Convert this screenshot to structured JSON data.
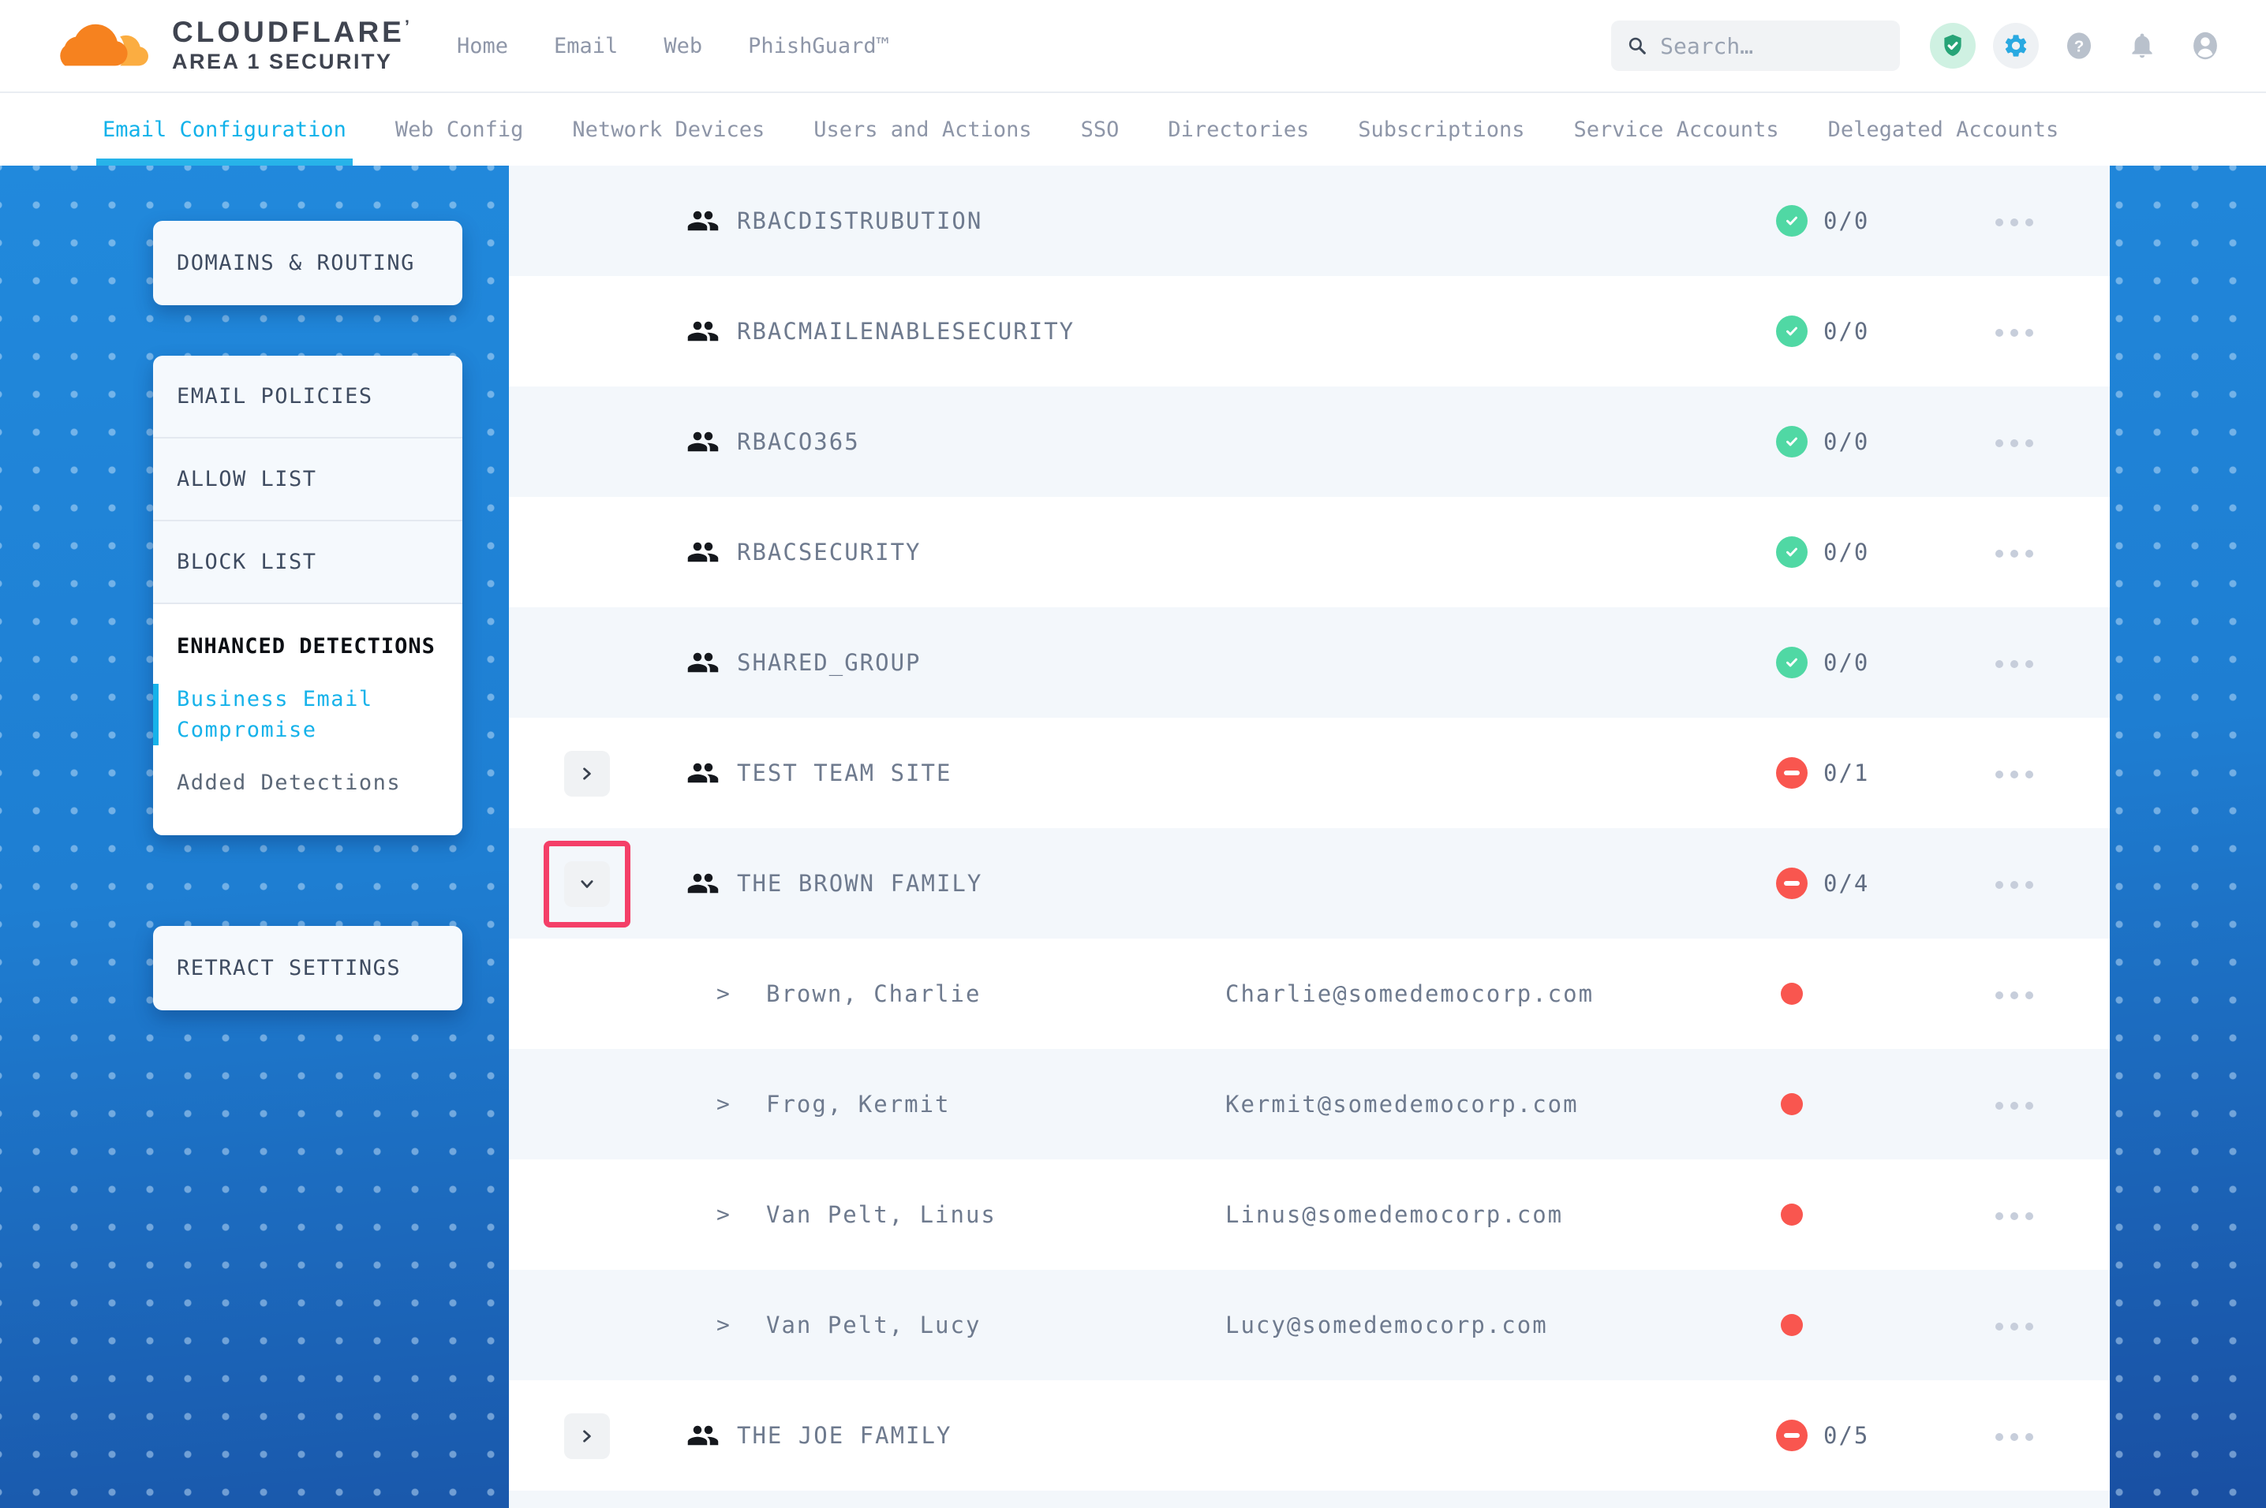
{
  "brand": {
    "name": "CLOUDFLARE",
    "mark": "’",
    "subtitle": "AREA 1 SECURITY"
  },
  "top_nav": {
    "items": [
      "Home",
      "Email",
      "Web",
      "PhishGuard™"
    ]
  },
  "search": {
    "placeholder": "Search…"
  },
  "header_icons": [
    "security-shield-icon",
    "settings-gear-icon",
    "help-icon",
    "notifications-bell-icon",
    "account-icon"
  ],
  "tabs": {
    "items": [
      {
        "label": "Email Configuration",
        "active": true
      },
      {
        "label": "Web Config",
        "active": false
      },
      {
        "label": "Network Devices",
        "active": false
      },
      {
        "label": "Users and Actions",
        "active": false
      },
      {
        "label": "SSO",
        "active": false
      },
      {
        "label": "Directories",
        "active": false
      },
      {
        "label": "Subscriptions",
        "active": false
      },
      {
        "label": "Service Accounts",
        "active": false
      },
      {
        "label": "Delegated Accounts",
        "active": false
      }
    ]
  },
  "sidebar": {
    "cards": [
      {
        "items": [
          {
            "label": "DOMAINS & ROUTING"
          }
        ]
      },
      {
        "items": [
          {
            "label": "EMAIL POLICIES"
          },
          {
            "label": "ALLOW LIST"
          },
          {
            "label": "BLOCK LIST"
          },
          {
            "label": "ENHANCED DETECTIONS",
            "children": [
              {
                "label": "Business Email Compromise",
                "active": true
              },
              {
                "label": "Added Detections",
                "active": false
              }
            ]
          }
        ]
      },
      {
        "items": [
          {
            "label": "RETRACT SETTINGS"
          }
        ]
      }
    ]
  },
  "glyphs": {
    "member_caret": ">"
  },
  "list": {
    "rows": [
      {
        "kind": "group",
        "name": "RBACDISTRUBUTION",
        "status": "ok",
        "count": "0/0",
        "expandable": false,
        "expanded": false,
        "highlighted": false
      },
      {
        "kind": "group",
        "name": "RBACMAILENABLESECURITY",
        "status": "ok",
        "count": "0/0",
        "expandable": false,
        "expanded": false,
        "highlighted": false
      },
      {
        "kind": "group",
        "name": "RBACO365",
        "status": "ok",
        "count": "0/0",
        "expandable": false,
        "expanded": false,
        "highlighted": false
      },
      {
        "kind": "group",
        "name": "RBACSECURITY",
        "status": "ok",
        "count": "0/0",
        "expandable": false,
        "expanded": false,
        "highlighted": false
      },
      {
        "kind": "group",
        "name": "SHARED_GROUP",
        "status": "ok",
        "count": "0/0",
        "expandable": false,
        "expanded": false,
        "highlighted": false
      },
      {
        "kind": "group",
        "name": "TEST TEAM SITE",
        "status": "blocked",
        "count": "0/1",
        "expandable": true,
        "expanded": false,
        "highlighted": false
      },
      {
        "kind": "group",
        "name": "THE BROWN FAMILY",
        "status": "blocked",
        "count": "0/4",
        "expandable": true,
        "expanded": true,
        "highlighted": true
      },
      {
        "kind": "member",
        "name": "Brown, Charlie",
        "email": "Charlie@somedemocorp.com",
        "status": "blocked"
      },
      {
        "kind": "member",
        "name": "Frog, Kermit",
        "email": "Kermit@somedemocorp.com",
        "status": "blocked"
      },
      {
        "kind": "member",
        "name": "Van Pelt, Linus",
        "email": "Linus@somedemocorp.com",
        "status": "blocked"
      },
      {
        "kind": "member",
        "name": "Van Pelt, Lucy",
        "email": "Lucy@somedemocorp.com",
        "status": "blocked"
      },
      {
        "kind": "group",
        "name": "THE JOE FAMILY",
        "status": "blocked",
        "count": "0/5",
        "expandable": true,
        "expanded": false,
        "highlighted": false
      }
    ]
  },
  "colors": {
    "accent_cyan": "#12b2ea",
    "blue_bg_top": "#2189dc",
    "blue_bg_bottom": "#194fa2",
    "status_green": "#50d8a4",
    "status_red": "#f9564f",
    "annotation_pink": "#f43f68",
    "row_shade": "#f3f7fb",
    "text_slate": "#6e7a8e",
    "brand_orange": "#f6821f",
    "brand_orange_light": "#fbad41"
  }
}
